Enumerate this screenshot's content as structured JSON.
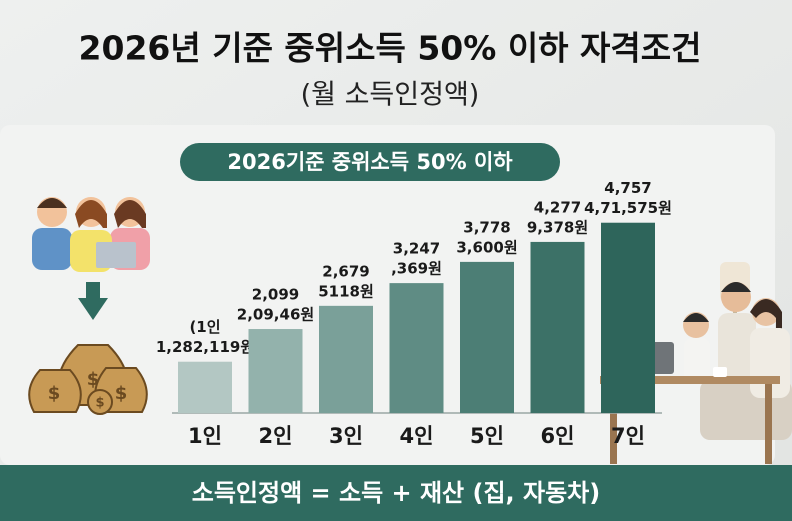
{
  "chart_data": {
    "type": "bar",
    "title": "2026년 기준 중위소득 50% 이하 자격조건",
    "subtitle": "(월 소득인정액)",
    "badge": "2026기준 중위소득 50% 이하",
    "footer": "소득인정액 = 소득 + 재산 (집, 자동차)",
    "categories": [
      "1인",
      "2인",
      "3인",
      "4인",
      "5인",
      "6인",
      "7인"
    ],
    "values": [
      1282119,
      2099000,
      2679000,
      3247000,
      3778000,
      4277000,
      4757000
    ],
    "value_labels": [
      [
        "(1인",
        "1,282,119원"
      ],
      [
        "2,099",
        "2,09,46원"
      ],
      [
        "2,679",
        "5118원"
      ],
      [
        "3,247",
        ",369원"
      ],
      [
        "3,778",
        "3,600원"
      ],
      [
        "4,277",
        "9,378원"
      ],
      [
        "4,757",
        "4,71,575원"
      ]
    ],
    "colors": [
      "#b3c7c3",
      "#93b2ac",
      "#7aa099",
      "#5f8c84",
      "#4c7e75",
      "#3c7167",
      "#2e655b"
    ],
    "ylim": [
      0,
      5000000
    ]
  }
}
